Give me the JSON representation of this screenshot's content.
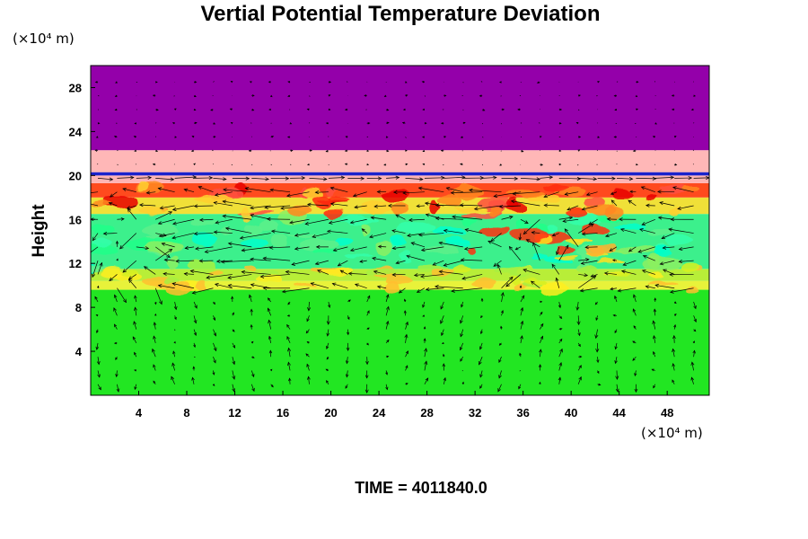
{
  "chart_data": {
    "type": "heatmap",
    "title": "Vertial Potential Temperature Deviation",
    "ylabel": "Height",
    "xlabel": "",
    "x_unit": "(×10⁴ m)",
    "y_unit": "(×10⁴ m)",
    "x_ticks": [
      "4",
      "8",
      "12",
      "16",
      "20",
      "24",
      "28",
      "32",
      "36",
      "40",
      "44",
      "48"
    ],
    "y_ticks": [
      "4",
      "8",
      "12",
      "16",
      "20",
      "24",
      "28"
    ],
    "xlim": [
      0,
      51.5
    ],
    "ylim": [
      0,
      30
    ],
    "overlay": "wind-vector-arrows",
    "layers": [
      {
        "from": 0,
        "to": 9.6,
        "color": "#22e622"
      },
      {
        "from": 9.6,
        "to": 10.4,
        "color": "#e8f23a"
      },
      {
        "from": 10.4,
        "to": 11.5,
        "color": "#b8ee38"
      },
      {
        "from": 11.5,
        "to": 16.5,
        "color": "#3cf08c"
      },
      {
        "from": 16.5,
        "to": 18.0,
        "color": "#f0e038"
      },
      {
        "from": 18.0,
        "to": 19.3,
        "color": "#ff4a1e"
      },
      {
        "from": 19.3,
        "to": 20.0,
        "color": "#ffb4b4"
      },
      {
        "from": 20.0,
        "to": 20.3,
        "color": "#1a22cc"
      },
      {
        "from": 20.3,
        "to": 22.3,
        "color": "#ffb7b7"
      },
      {
        "from": 22.3,
        "to": 30,
        "color": "#9400aa"
      }
    ],
    "grid": false
  },
  "time_label": "TIME = 4011840.0"
}
